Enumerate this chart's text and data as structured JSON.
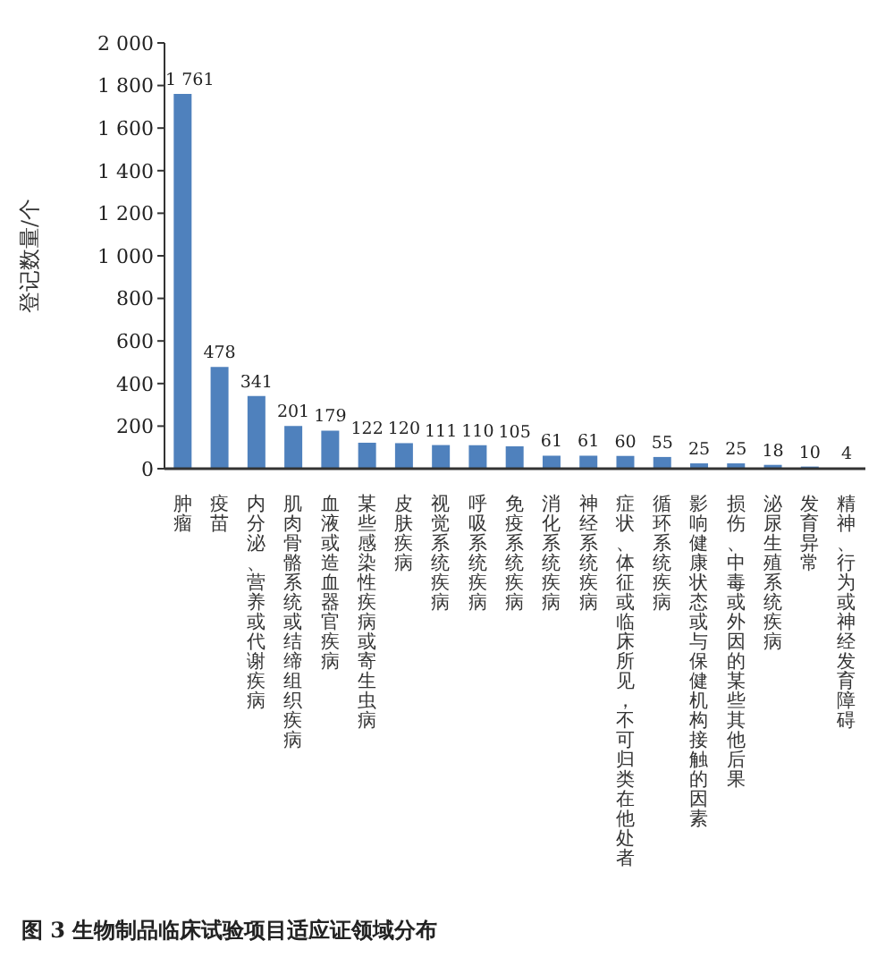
{
  "chart_data": {
    "type": "bar",
    "title": "图 3 生物制品临床试验项目适应证领域分布",
    "ylabel": "登记数量/个",
    "categories": [
      "肿瘤",
      "疫苗",
      "内分泌、营养或代谢疾病",
      "肌肉骨骼系统或结缔组织疾病",
      "血液或造血器官疾病",
      "某些感染性疾病或寄生虫病",
      "皮肤疾病",
      "视觉系统疾病",
      "呼吸系统疾病",
      "免疫系统疾病",
      "消化系统疾病",
      "神经系统疾病",
      "症状、体征或临床所见，不可归类在他处者",
      "循环系统疾病",
      "影响健康状态或与保健机构接触的因素",
      "损伤、中毒或外因的某些其他后果",
      "泌尿生殖系统疾病",
      "发育异常",
      "精神、行为或神经发育障碍"
    ],
    "values": [
      1761,
      478,
      341,
      201,
      179,
      122,
      120,
      111,
      110,
      105,
      61,
      61,
      60,
      55,
      25,
      25,
      18,
      10,
      4
    ],
    "value_labels": [
      "1 761",
      "478",
      "341",
      "201",
      "179",
      "122",
      "120",
      "111",
      "110",
      "105",
      "61",
      "61",
      "60",
      "55",
      "25",
      "25",
      "18",
      "10",
      "4"
    ],
    "color": "#4f81bd",
    "ylim": [
      0,
      2000
    ],
    "yticks": [
      0,
      200,
      400,
      600,
      800,
      {
        "value": 1000,
        "label": "1 000"
      },
      {
        "value": 1200,
        "label": "1 200"
      },
      {
        "value": 1400,
        "label": "1 400"
      },
      {
        "value": 1600,
        "label": "1 600"
      },
      {
        "value": 1800,
        "label": "1 800"
      },
      {
        "value": 2000,
        "label": "2 000"
      }
    ],
    "grid": false,
    "legend": false
  }
}
